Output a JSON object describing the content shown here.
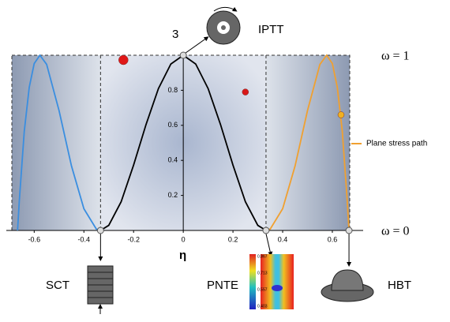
{
  "chart_data": {
    "type": "line",
    "top_label": "3",
    "icon_labels": [
      "IPTT",
      "SCT",
      "PNTE",
      "HBT"
    ],
    "ylabels": [
      "ω = 1",
      "ω = 0"
    ],
    "xlabel": "η",
    "legend": "Plane stress path",
    "legend_color": "#f0a030",
    "xlim": [
      -0.69,
      0.67
    ],
    "ylim": [
      0,
      1
    ],
    "xticks": [
      -0.6,
      -0.4,
      -0.2,
      0,
      0.2,
      0.4,
      0.6
    ],
    "yticks": [
      0.2,
      0.4,
      0.6,
      0.8
    ],
    "series": [
      {
        "color": "#3a8ee0",
        "x": [
          -0.667,
          -0.66,
          -0.64,
          -0.62,
          -0.6,
          -0.577,
          -0.55,
          -0.5,
          -0.45,
          -0.4,
          -0.35,
          -0.333
        ],
        "values": [
          0,
          0.169,
          0.566,
          0.817,
          0.953,
          1,
          0.948,
          0.684,
          0.368,
          0.124,
          0.008,
          0
        ]
      },
      {
        "color": "#000000",
        "x": [
          -0.333,
          -0.3,
          -0.25,
          -0.2,
          -0.15,
          -0.1,
          -0.05,
          0,
          0.05,
          0.1,
          0.15,
          0.2,
          0.25,
          0.3,
          0.333
        ],
        "values": [
          0,
          0.029,
          0.164,
          0.373,
          0.604,
          0.81,
          0.95,
          1,
          0.95,
          0.81,
          0.604,
          0.373,
          0.164,
          0.029,
          0
        ]
      },
      {
        "name": "Plane stress path",
        "color": "#f0a030",
        "x": [
          0.333,
          0.35,
          0.4,
          0.45,
          0.5,
          0.55,
          0.577,
          0.6,
          0.62,
          0.64,
          0.66,
          0.667
        ],
        "values": [
          0,
          0.008,
          0.124,
          0.368,
          0.684,
          0.948,
          1,
          0.953,
          0.817,
          0.566,
          0.169,
          0
        ]
      }
    ],
    "points": [
      {
        "x": -0.241,
        "y": 0.973,
        "r": 6,
        "color": "#e01818"
      },
      {
        "x": 0.25,
        "y": 0.79,
        "r": 4,
        "color": "#d81818"
      },
      {
        "x": 0.635,
        "y": 0.66,
        "r": 4,
        "color": "#f0b020"
      }
    ],
    "nodes": {
      "x": [
        -0.333,
        0,
        0.333,
        0.667
      ],
      "values": [
        0,
        1,
        0,
        0
      ]
    },
    "inset_ticks": [
      0.867,
      0.713,
      0.557,
      0.403
    ]
  }
}
